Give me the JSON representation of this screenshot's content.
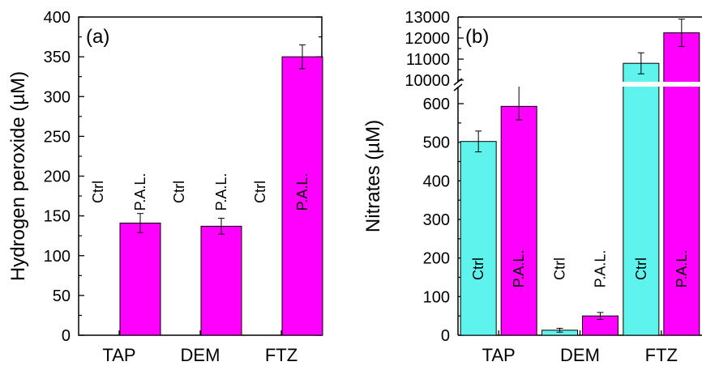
{
  "colors": {
    "ctrl": "#5ff3ee",
    "pal": "#ff00ff",
    "axis": "#000000",
    "break": "#ffffff"
  },
  "chart_data": [
    {
      "type": "bar",
      "panel_label": "(a)",
      "ylabel": "Hydrogen peroxide (µM)",
      "xlabel": "",
      "categories": [
        "TAP",
        "DEM",
        "FTZ"
      ],
      "ylim": [
        0,
        400
      ],
      "yticks": [
        0,
        50,
        100,
        150,
        200,
        250,
        300,
        350,
        400
      ],
      "series": [
        {
          "name": "Ctrl",
          "values": [
            0,
            0,
            0
          ],
          "errors": [
            0,
            0,
            0
          ]
        },
        {
          "name": "P.A.L.",
          "values": [
            141,
            137,
            350
          ],
          "errors": [
            12,
            10,
            15
          ]
        }
      ]
    },
    {
      "type": "bar",
      "panel_label": "(b)",
      "ylabel": "Nitrates (µM)",
      "xlabel": "",
      "categories": [
        "TAP",
        "DEM",
        "FTZ"
      ],
      "axis_break": {
        "lower_range": [
          0,
          600
        ],
        "upper_range": [
          10000,
          13000
        ]
      },
      "yticks": [
        0,
        100,
        200,
        300,
        400,
        500,
        600,
        10000,
        11000,
        12000,
        13000
      ],
      "series": [
        {
          "name": "Ctrl",
          "values": [
            502,
            13,
            10800
          ],
          "errors": [
            27,
            5,
            500
          ]
        },
        {
          "name": "P.A.L.",
          "values": [
            593,
            50,
            12250
          ],
          "errors": [
            35,
            9,
            650
          ]
        }
      ]
    }
  ]
}
